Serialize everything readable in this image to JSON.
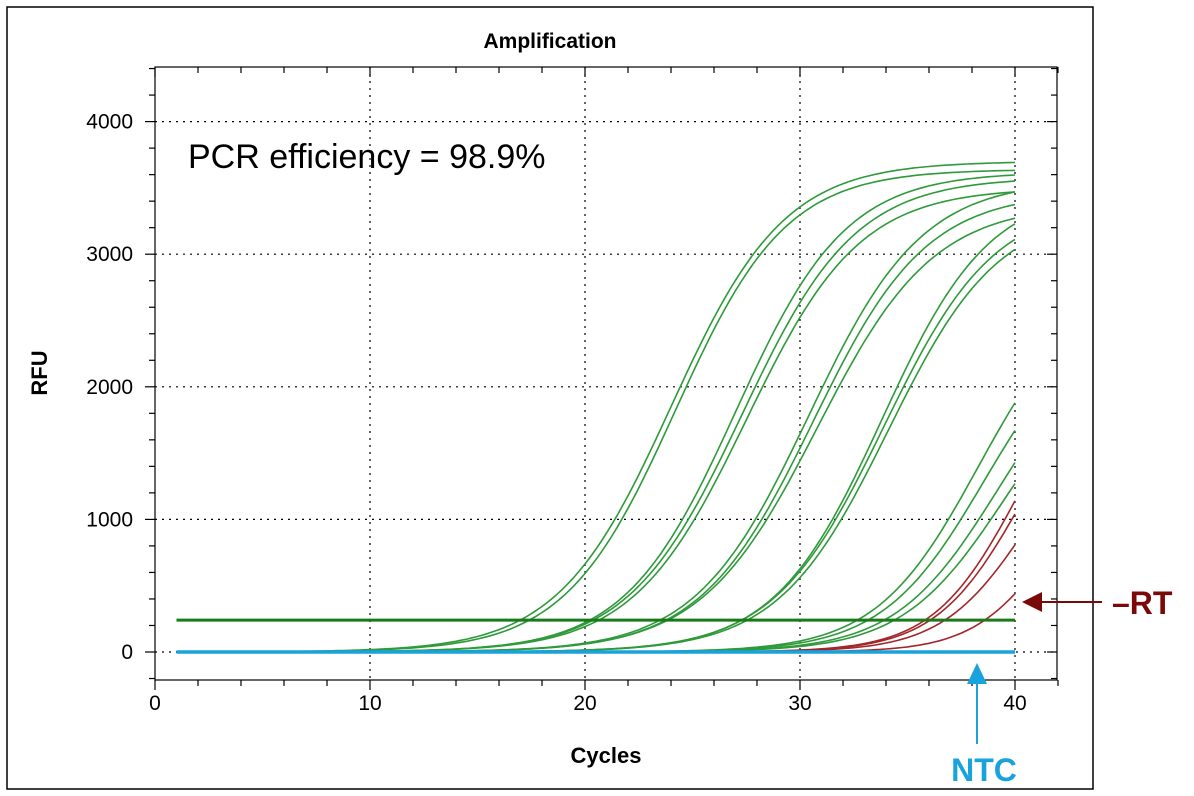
{
  "chart_data": {
    "type": "line",
    "title": "Amplification",
    "xlabel": "Cycles",
    "ylabel": "RFU",
    "xlim": [
      0,
      42
    ],
    "ylim": [
      -250,
      4400
    ],
    "x_ticks": [
      0,
      10,
      20,
      30,
      40
    ],
    "y_ticks": [
      0,
      1000,
      2000,
      3000,
      4000
    ],
    "grid": true,
    "x_cycles": [
      1,
      40
    ],
    "annotation": "PCR efficiency = 98.9%",
    "threshold": {
      "value": 240,
      "color": "#1a7a1a"
    },
    "labels": {
      "minus_rt": "–RT",
      "ntc": "NTC"
    },
    "colors": {
      "sample": "#2e9a3a",
      "minus_rt": "#a3262a",
      "ntc": "#19a3dc",
      "threshold": "#1a7a1a",
      "minus_rt_label": "#7a0a0a"
    },
    "series_groups": [
      {
        "group": "sample",
        "curves": [
          {
            "plateau": 3700,
            "midpoint": 24.0,
            "slope": 0.38
          },
          {
            "plateau": 3640,
            "midpoint": 24.2,
            "slope": 0.39
          },
          {
            "plateau": 3620,
            "midpoint": 27.0,
            "slope": 0.39
          },
          {
            "plateau": 3580,
            "midpoint": 27.3,
            "slope": 0.38
          },
          {
            "plateau": 3500,
            "midpoint": 27.5,
            "slope": 0.38
          },
          {
            "plateau": 3560,
            "midpoint": 30.4,
            "slope": 0.38
          },
          {
            "plateau": 3470,
            "midpoint": 30.6,
            "slope": 0.38
          },
          {
            "plateau": 3380,
            "midpoint": 30.8,
            "slope": 0.37
          },
          {
            "plateau": 3500,
            "midpoint": 33.8,
            "slope": 0.4
          },
          {
            "plateau": 3400,
            "midpoint": 33.9,
            "slope": 0.39
          },
          {
            "plateau": 3340,
            "midpoint": 34.1,
            "slope": 0.39
          },
          {
            "plateau": 2800,
            "midpoint": 38.3,
            "slope": 0.42
          },
          {
            "plateau": 2600,
            "midpoint": 38.6,
            "slope": 0.42
          },
          {
            "plateau": 2450,
            "midpoint": 39.2,
            "slope": 0.42
          },
          {
            "plateau": 2300,
            "midpoint": 39.5,
            "slope": 0.42
          }
        ]
      },
      {
        "group": "minus_rt",
        "curves": [
          {
            "plateau": 2400,
            "midpoint": 40.2,
            "slope": 0.5
          },
          {
            "plateau": 2250,
            "midpoint": 40.3,
            "slope": 0.5
          },
          {
            "plateau": 1900,
            "midpoint": 40.6,
            "slope": 0.5
          },
          {
            "plateau": 1500,
            "midpoint": 41.6,
            "slope": 0.55
          }
        ]
      },
      {
        "group": "ntc",
        "curves": [
          {
            "plateau": 0,
            "midpoint": 60,
            "slope": 0.5
          }
        ]
      }
    ]
  }
}
